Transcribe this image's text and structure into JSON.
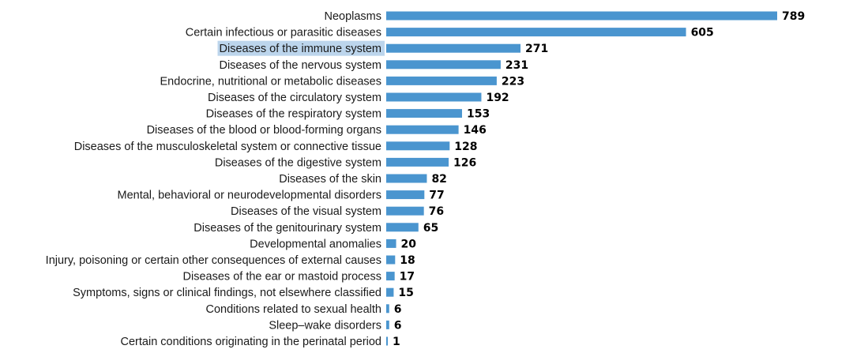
{
  "colors": {
    "bar": "#4a95cf",
    "highlight": "#bcd5ec",
    "label": "#1a1a1a",
    "value": "#000000"
  },
  "chart_data": {
    "type": "bar",
    "orientation": "horizontal",
    "highlighted_category": "Diseases of the immune system",
    "categories": [
      "Neoplasms",
      "Certain infectious or parasitic diseases",
      "Diseases of the immune system",
      "Diseases of the nervous system",
      "Endocrine, nutritional or metabolic diseases",
      "Diseases of the circulatory system",
      "Diseases of the respiratory system",
      "Diseases of the blood or blood-forming organs",
      "Diseases of the musculoskeletal system or connective tissue",
      "Diseases of the digestive system",
      "Diseases of the skin",
      "Mental, behavioral or neurodevelopmental disorders",
      "Diseases of the visual system",
      "Diseases of the genitourinary system",
      "Developmental anomalies",
      "Injury, poisoning or certain other consequences of external causes",
      "Diseases of the ear or mastoid process",
      "Symptoms, signs or clinical findings, not elsewhere classified",
      "Conditions related to sexual health",
      "Sleep–wake disorders",
      "Certain conditions originating in the perinatal period"
    ],
    "values": [
      789,
      605,
      271,
      231,
      223,
      192,
      153,
      146,
      128,
      126,
      82,
      77,
      76,
      65,
      20,
      18,
      17,
      15,
      6,
      6,
      1
    ],
    "xlim": [
      0,
      789
    ],
    "grid": false,
    "legend": "none"
  }
}
